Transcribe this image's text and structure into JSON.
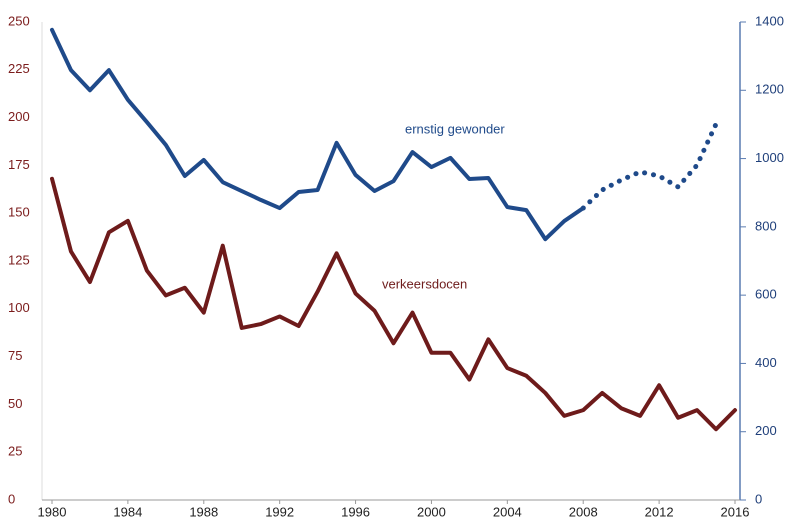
{
  "chart_data": {
    "type": "line",
    "x": [
      1980,
      1981,
      1982,
      1983,
      1984,
      1985,
      1986,
      1987,
      1988,
      1989,
      1990,
      1991,
      1992,
      1993,
      1994,
      1995,
      1996,
      1997,
      1998,
      1999,
      2000,
      2001,
      2002,
      2003,
      2004,
      2005,
      2006,
      2007,
      2008,
      2009,
      2010,
      2011,
      2012,
      2013,
      2014,
      2015,
      2016
    ],
    "xlim": [
      1980,
      2016
    ],
    "xticks": [
      1980,
      1984,
      1988,
      1992,
      1996,
      2000,
      2004,
      2008,
      2012,
      2016
    ],
    "ylim": [
      0,
      250
    ],
    "yticks": [
      0,
      25,
      50,
      75,
      100,
      125,
      150,
      175,
      200,
      225,
      250
    ],
    "y2lim": [
      0,
      1400
    ],
    "y2ticks": [
      0,
      200,
      400,
      600,
      800,
      1000,
      1200,
      1400
    ],
    "ycolor": "#7b1c1c",
    "y2color": "#1f3f7a",
    "series": [
      {
        "name": "verkeersdocen",
        "color": "#6e1b1b",
        "style": "solid",
        "values": [
          168,
          130,
          114,
          140,
          146,
          120,
          107,
          111,
          98,
          133,
          90,
          92,
          96,
          91,
          109,
          129,
          108,
          99,
          82,
          98,
          77,
          77,
          63,
          84,
          69,
          65,
          56,
          44,
          47,
          56,
          48,
          44,
          60,
          43,
          47,
          37,
          47
        ]
      },
      {
        "name": "ernstig gewonder",
        "color": "#1f4a8a",
        "style": "solid",
        "axis": "y2",
        "values": [
          1377,
          1259,
          1200,
          1259,
          1172,
          1107,
          1040,
          949,
          996,
          931,
          905,
          879,
          855,
          902,
          908,
          1046,
          952,
          905,
          934,
          1019,
          975,
          1002,
          940,
          943,
          858,
          849,
          764,
          817,
          855,
          null,
          null,
          null,
          null,
          null,
          null,
          null,
          null
        ]
      },
      {
        "color": "#1f4a8a",
        "style": "dotted",
        "axis": "y2",
        "values": [
          null,
          null,
          null,
          null,
          null,
          null,
          null,
          null,
          null,
          null,
          null,
          null,
          null,
          null,
          null,
          null,
          null,
          null,
          null,
          null,
          null,
          null,
          null,
          null,
          null,
          null,
          null,
          null,
          855,
          908,
          937,
          961,
          949,
          917,
          981,
          1101,
          null
        ]
      }
    ]
  }
}
